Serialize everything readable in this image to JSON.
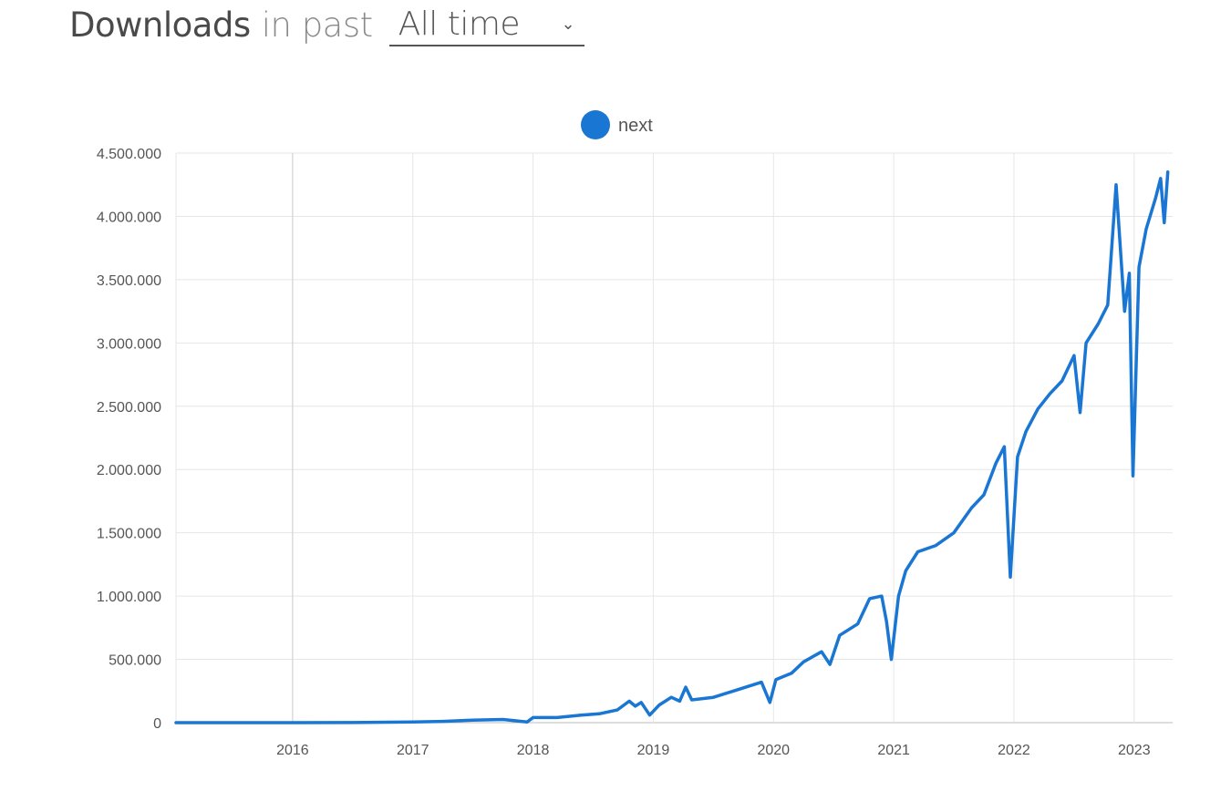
{
  "header": {
    "title": "Downloads",
    "subtitle": "in past",
    "range_select": {
      "value": "All time"
    }
  },
  "colors": {
    "series": "#1976d2",
    "grid": "#e6e6e6",
    "year_line": "#cccccc"
  },
  "chart_data": {
    "type": "line",
    "title": "",
    "xlabel": "",
    "ylabel": "",
    "legend_position": "top-center",
    "grid": true,
    "xlim": [
      2015.03,
      2023.28
    ],
    "ylim": [
      0,
      4500000
    ],
    "y_ticks": [
      {
        "value": 0,
        "label": "0"
      },
      {
        "value": 500000,
        "label": "500.000"
      },
      {
        "value": 1000000,
        "label": "1.000.000"
      },
      {
        "value": 1500000,
        "label": "1.500.000"
      },
      {
        "value": 2000000,
        "label": "2.000.000"
      },
      {
        "value": 2500000,
        "label": "2.500.000"
      },
      {
        "value": 3000000,
        "label": "3.000.000"
      },
      {
        "value": 3500000,
        "label": "3.500.000"
      },
      {
        "value": 4000000,
        "label": "4.000.000"
      },
      {
        "value": 4500000,
        "label": "4.500.000"
      }
    ],
    "x_ticks": [
      {
        "value": 2016,
        "label": "2016"
      },
      {
        "value": 2017,
        "label": "2017"
      },
      {
        "value": 2018,
        "label": "2018"
      },
      {
        "value": 2019,
        "label": "2019"
      },
      {
        "value": 2020,
        "label": "2020"
      },
      {
        "value": 2021,
        "label": "2021"
      },
      {
        "value": 2022,
        "label": "2022"
      },
      {
        "value": 2023,
        "label": "2023"
      }
    ],
    "series": [
      {
        "name": "next",
        "points": [
          [
            2015.03,
            0
          ],
          [
            2015.5,
            0
          ],
          [
            2016.0,
            0
          ],
          [
            2016.5,
            1000
          ],
          [
            2017.0,
            5000
          ],
          [
            2017.25,
            10000
          ],
          [
            2017.5,
            20000
          ],
          [
            2017.75,
            25000
          ],
          [
            2017.95,
            5000
          ],
          [
            2018.0,
            40000
          ],
          [
            2018.2,
            40000
          ],
          [
            2018.4,
            60000
          ],
          [
            2018.55,
            70000
          ],
          [
            2018.7,
            100000
          ],
          [
            2018.8,
            170000
          ],
          [
            2018.85,
            130000
          ],
          [
            2018.9,
            160000
          ],
          [
            2018.97,
            60000
          ],
          [
            2019.05,
            140000
          ],
          [
            2019.15,
            200000
          ],
          [
            2019.22,
            170000
          ],
          [
            2019.27,
            280000
          ],
          [
            2019.32,
            180000
          ],
          [
            2019.5,
            200000
          ],
          [
            2019.7,
            260000
          ],
          [
            2019.9,
            320000
          ],
          [
            2019.97,
            160000
          ],
          [
            2020.02,
            340000
          ],
          [
            2020.15,
            390000
          ],
          [
            2020.25,
            480000
          ],
          [
            2020.4,
            560000
          ],
          [
            2020.47,
            460000
          ],
          [
            2020.55,
            690000
          ],
          [
            2020.7,
            780000
          ],
          [
            2020.8,
            980000
          ],
          [
            2020.9,
            1000000
          ],
          [
            2020.94,
            800000
          ],
          [
            2020.98,
            500000
          ],
          [
            2021.04,
            1000000
          ],
          [
            2021.1,
            1200000
          ],
          [
            2021.2,
            1350000
          ],
          [
            2021.35,
            1400000
          ],
          [
            2021.5,
            1500000
          ],
          [
            2021.65,
            1700000
          ],
          [
            2021.75,
            1800000
          ],
          [
            2021.85,
            2050000
          ],
          [
            2021.92,
            2180000
          ],
          [
            2021.97,
            1150000
          ],
          [
            2022.03,
            2100000
          ],
          [
            2022.1,
            2300000
          ],
          [
            2022.2,
            2480000
          ],
          [
            2022.3,
            2600000
          ],
          [
            2022.4,
            2700000
          ],
          [
            2022.5,
            2900000
          ],
          [
            2022.55,
            2450000
          ],
          [
            2022.6,
            3000000
          ],
          [
            2022.7,
            3150000
          ],
          [
            2022.78,
            3300000
          ],
          [
            2022.85,
            4250000
          ],
          [
            2022.92,
            3250000
          ],
          [
            2022.96,
            3550000
          ],
          [
            2022.99,
            1950000
          ],
          [
            2023.04,
            3600000
          ],
          [
            2023.1,
            3900000
          ],
          [
            2023.18,
            4150000
          ],
          [
            2023.22,
            4300000
          ],
          [
            2023.25,
            3950000
          ],
          [
            2023.28,
            4350000
          ]
        ]
      }
    ]
  }
}
